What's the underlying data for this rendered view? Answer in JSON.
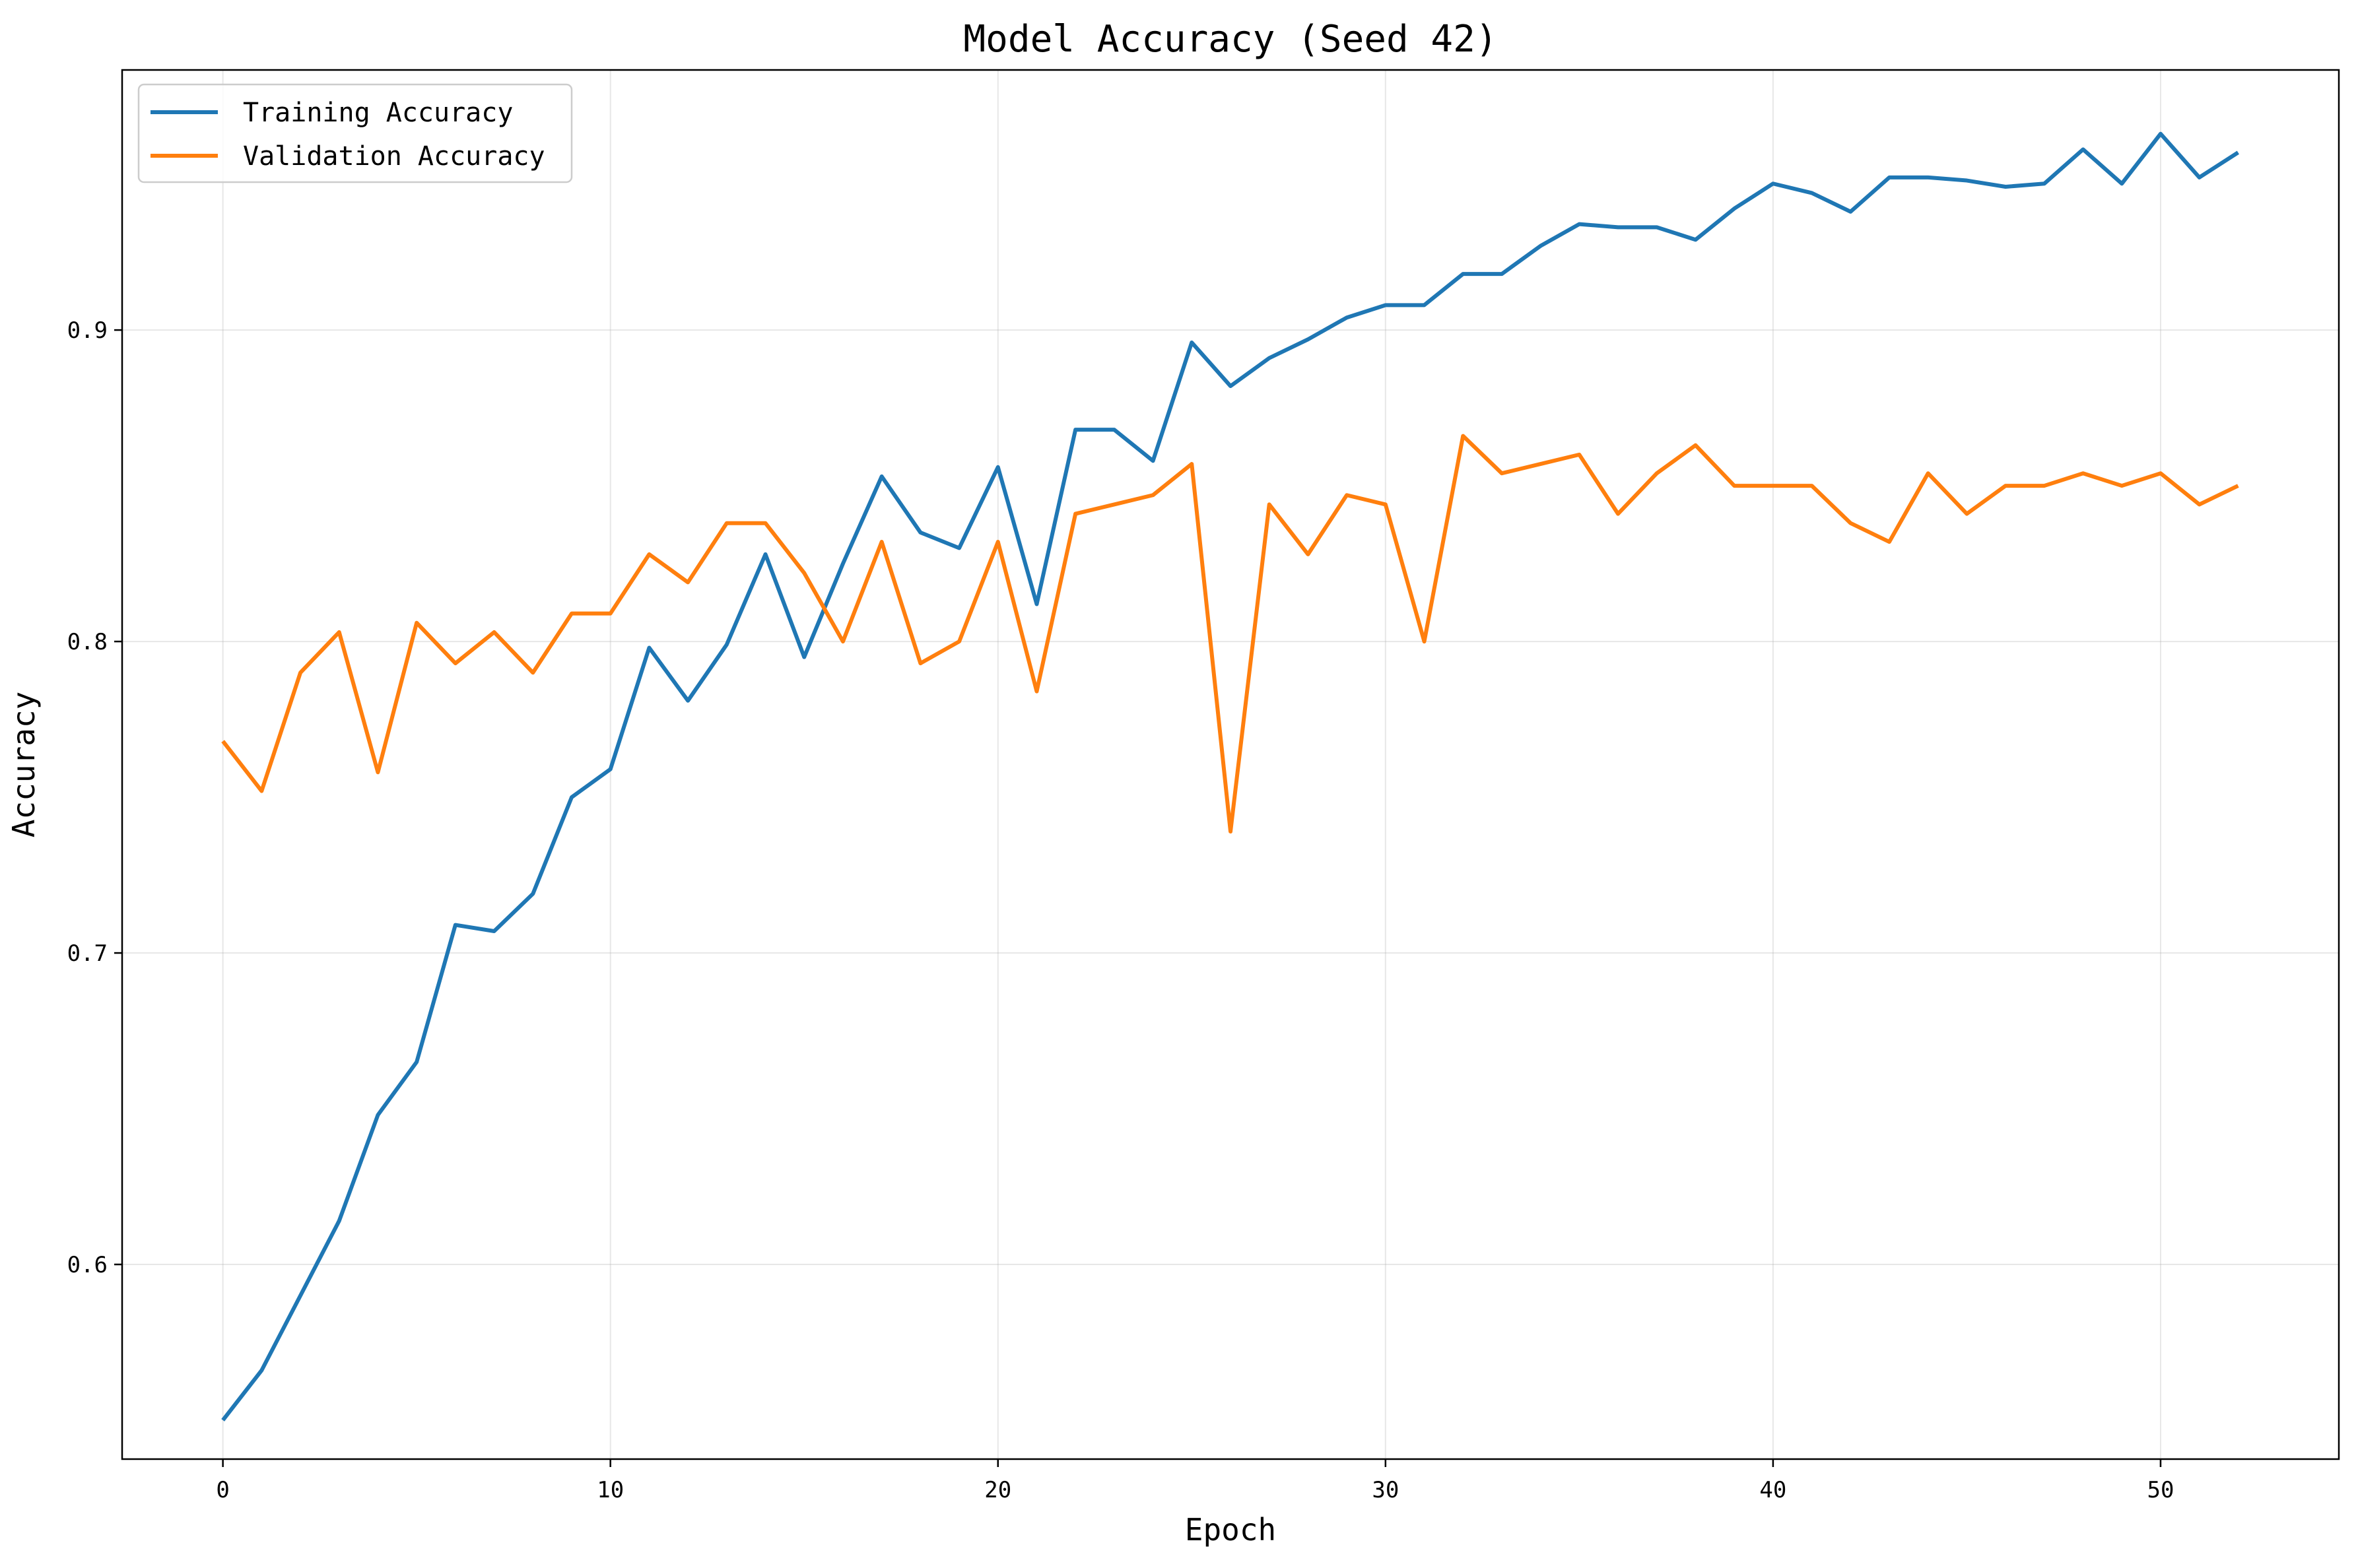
{
  "chart_data": {
    "type": "line",
    "title": "Model Accuracy (Seed 42)",
    "xlabel": "Epoch",
    "ylabel": "Accuracy",
    "xlim": [
      -2.6,
      54.6
    ],
    "ylim": [
      0.5375,
      0.9835
    ],
    "xticks": [
      0,
      10,
      20,
      30,
      40,
      50
    ],
    "xtick_labels": [
      "0",
      "10",
      "20",
      "30",
      "40",
      "50"
    ],
    "yticks": [
      0.6,
      0.7,
      0.8,
      0.9
    ],
    "ytick_labels": [
      "0.6",
      "0.7",
      "0.8",
      "0.9"
    ],
    "grid": true,
    "legend_position": "upper-left",
    "x": [
      0,
      1,
      2,
      3,
      4,
      5,
      6,
      7,
      8,
      9,
      10,
      11,
      12,
      13,
      14,
      15,
      16,
      17,
      18,
      19,
      20,
      21,
      22,
      23,
      24,
      25,
      26,
      27,
      28,
      29,
      30,
      31,
      32,
      33,
      34,
      35,
      36,
      37,
      38,
      39,
      40,
      41,
      42,
      43,
      44,
      45,
      46,
      47,
      48,
      49,
      50,
      51,
      52
    ],
    "series": [
      {
        "name": "Training Accuracy",
        "color": "#1f77b4",
        "values": [
          0.55,
          0.566,
          0.59,
          0.614,
          0.648,
          0.665,
          0.709,
          0.707,
          0.719,
          0.75,
          0.759,
          0.798,
          0.781,
          0.799,
          0.828,
          0.795,
          0.825,
          0.853,
          0.835,
          0.83,
          0.856,
          0.812,
          0.868,
          0.868,
          0.858,
          0.896,
          0.882,
          0.891,
          0.897,
          0.904,
          0.908,
          0.908,
          0.918,
          0.918,
          0.927,
          0.934,
          0.933,
          0.933,
          0.929,
          0.939,
          0.947,
          0.944,
          0.938,
          0.949,
          0.949,
          0.948,
          0.946,
          0.947,
          0.958,
          0.947,
          0.963,
          0.949,
          0.957
        ]
      },
      {
        "name": "Validation Accuracy",
        "color": "#ff7f0e",
        "values": [
          0.768,
          0.752,
          0.79,
          0.803,
          0.758,
          0.806,
          0.793,
          0.803,
          0.79,
          0.809,
          0.809,
          0.828,
          0.819,
          0.838,
          0.838,
          0.822,
          0.8,
          0.832,
          0.793,
          0.8,
          0.832,
          0.784,
          0.841,
          0.844,
          0.847,
          0.857,
          0.739,
          0.844,
          0.828,
          0.847,
          0.844,
          0.8,
          0.866,
          0.854,
          0.857,
          0.86,
          0.841,
          0.854,
          0.863,
          0.85,
          0.85,
          0.85,
          0.838,
          0.832,
          0.854,
          0.841,
          0.85,
          0.85,
          0.854,
          0.85,
          0.854,
          0.844,
          0.85
        ]
      }
    ]
  }
}
